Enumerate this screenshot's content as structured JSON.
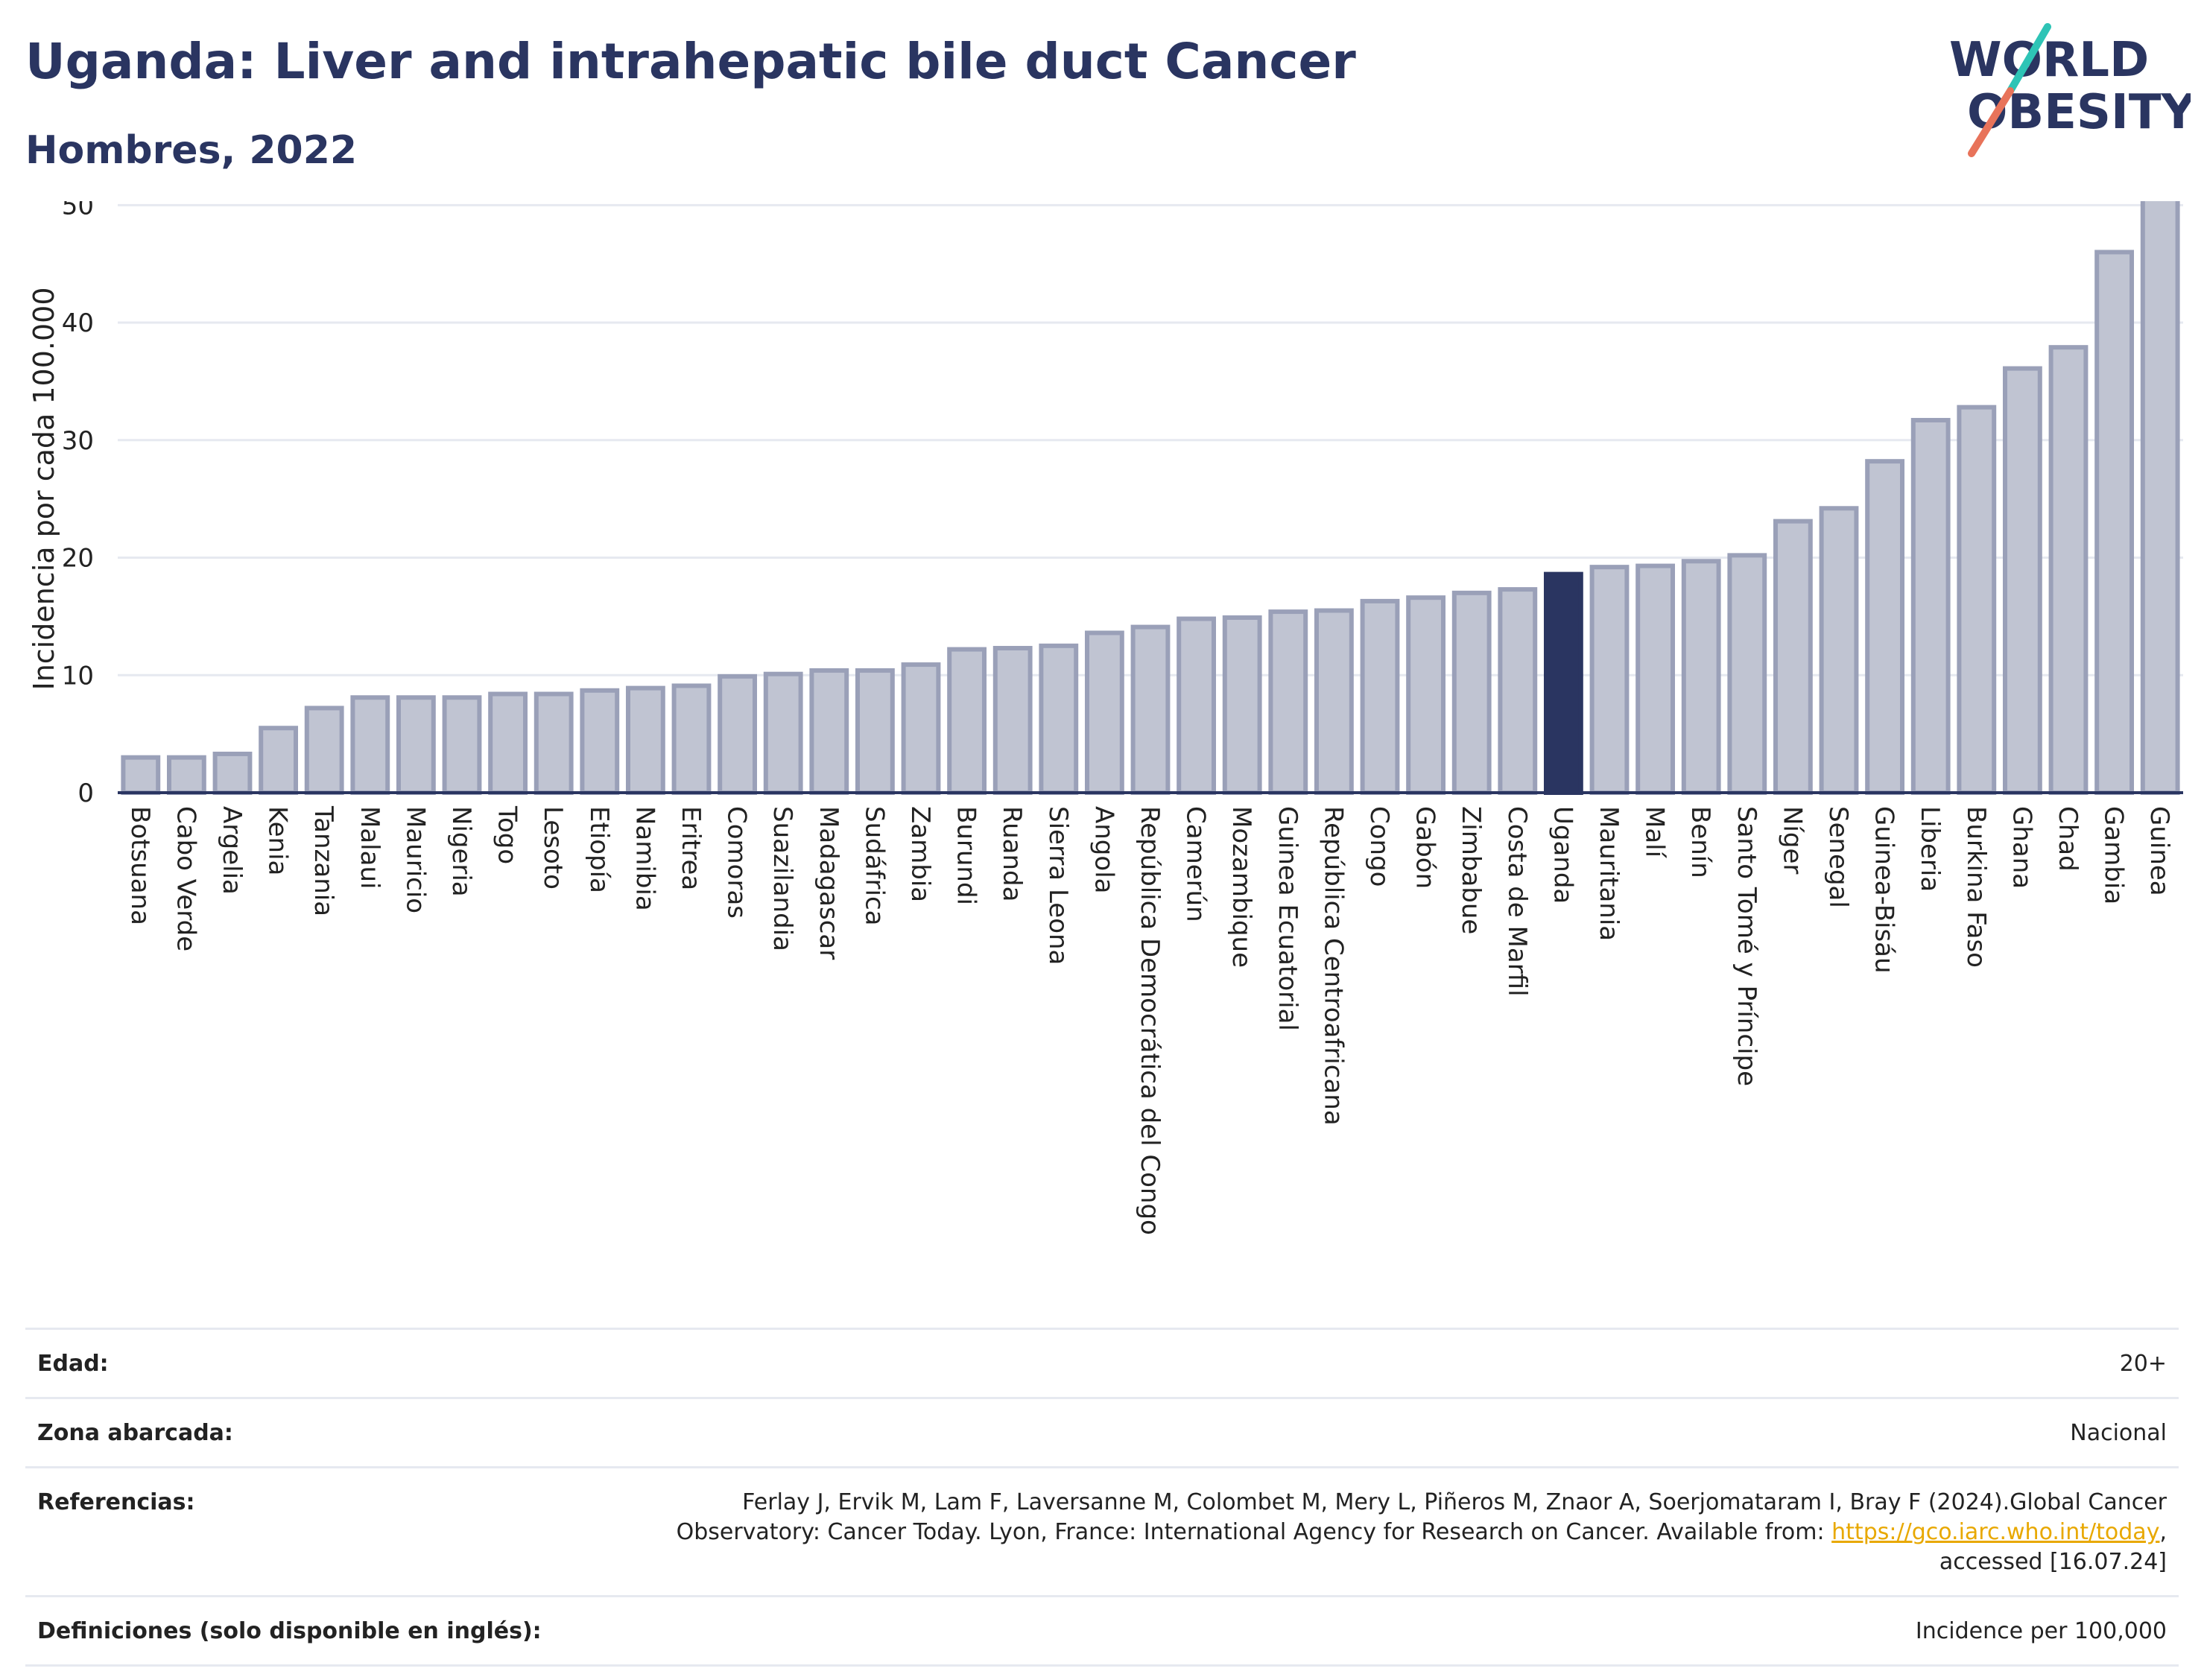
{
  "header": {
    "title": "Uganda: Liver and intrahepatic bile duct Cancer",
    "subtitle": "Hombres, 2022"
  },
  "logo": {
    "line1": "WORLD",
    "line2": "OBESITY",
    "colors": {
      "text": "#2a3561",
      "slash_top": "#2ec4b6",
      "slash_bottom": "#e8735a"
    }
  },
  "colors": {
    "bar_fill": "#c0c4d2",
    "bar_stroke": "#9aa0b8",
    "highlight": "#2a3561",
    "grid": "#e6e9f0",
    "axis": "#2a3561"
  },
  "chart_data": {
    "type": "bar",
    "ylabel": "Incidencia por cada 100.000",
    "xlabel": "",
    "ylim": [
      0,
      53
    ],
    "yticks": [
      0,
      10,
      20,
      30,
      40,
      50
    ],
    "grid": true,
    "highlight": "Uganda",
    "categories": [
      "Botsuana",
      "Cabo Verde",
      "Argelia",
      "Kenia",
      "Tanzania",
      "Malaui",
      "Mauricio",
      "Nigeria",
      "Togo",
      "Lesoto",
      "Etiopía",
      "Namibia",
      "Eritrea",
      "Comoras",
      "Suazilandia",
      "Madagascar",
      "Sudáfrica",
      "Zambia",
      "Burundi",
      "Ruanda",
      "Sierra Leona",
      "Angola",
      "República Democrática del Congo",
      "Camerún",
      "Mozambique",
      "Guinea Ecuatorial",
      "República Centroafricana",
      "Congo",
      "Gabón",
      "Zimbabue",
      "Costa de Marfil",
      "Uganda",
      "Mauritania",
      "Malí",
      "Benín",
      "Santo Tomé y Príncipe",
      "Níger",
      "Senegal",
      "Guinea-Bisáu",
      "Liberia",
      "Burkina Faso",
      "Ghana",
      "Chad",
      "Gambia",
      "Guinea"
    ],
    "values": [
      3.0,
      3.0,
      3.3,
      5.5,
      7.2,
      8.1,
      8.1,
      8.1,
      8.4,
      8.4,
      8.7,
      8.9,
      9.1,
      9.9,
      10.1,
      10.4,
      10.4,
      10.9,
      12.2,
      12.3,
      12.5,
      13.6,
      14.1,
      14.8,
      14.9,
      15.4,
      15.5,
      16.3,
      16.6,
      17.0,
      17.3,
      18.6,
      19.2,
      19.3,
      19.7,
      20.2,
      23.1,
      24.2,
      28.2,
      31.7,
      32.8,
      36.1,
      37.9,
      46.0,
      51.2
    ]
  },
  "meta": [
    {
      "label": "Edad:",
      "value": "20+"
    },
    {
      "label": "Zona abarcada:",
      "value": "Nacional"
    },
    {
      "label": "Referencias:",
      "value_pre": "Ferlay J, Ervik M, Lam F, Laversanne M, Colombet M, Mery L, Piñeros M, Znaor A, Soerjomataram I, Bray F (2024).Global Cancer Observatory: Cancer Today. Lyon, France: International Agency for Research on Cancer. Available from: ",
      "link": "https://gco.iarc.who.int/today",
      "value_post": ", accessed [16.07.24]"
    },
    {
      "label": "Definiciones (solo disponible en inglés):",
      "value": "Incidence per 100,000"
    }
  ]
}
